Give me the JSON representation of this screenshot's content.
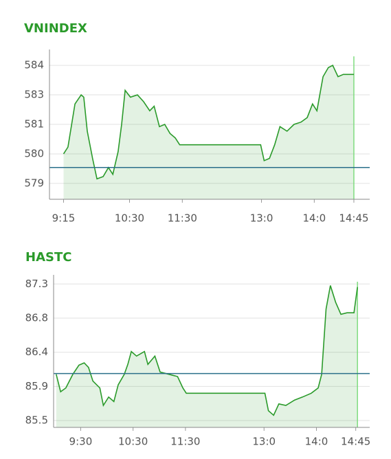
{
  "chart_data": [
    {
      "type": "line",
      "title": "VNINDEX",
      "color": "#2a9a2a",
      "grid": true,
      "x": [
        "9:15",
        "9:20",
        "9:28",
        "9:35",
        "9:38",
        "9:42",
        "9:48",
        "9:53",
        "10:00",
        "10:06",
        "10:11",
        "10:17",
        "10:21",
        "10:25",
        "10:31",
        "10:39",
        "10:46",
        "10:53",
        "10:58",
        "11:04",
        "11:10",
        "11:16",
        "11:22",
        "11:27",
        "12:59",
        "13:03",
        "13:09",
        "13:15",
        "13:21",
        "13:29",
        "13:37",
        "13:45",
        "13:52",
        "13:58",
        "14:03",
        "14:10",
        "14:16",
        "14:21",
        "14:27",
        "14:33",
        "14:45"
      ],
      "values": [
        580.1,
        580.4,
        582.3,
        582.7,
        582.6,
        581.1,
        579.9,
        579.0,
        579.1,
        579.5,
        579.2,
        580.2,
        581.4,
        582.9,
        582.6,
        582.7,
        582.4,
        582.0,
        582.2,
        581.3,
        581.4,
        581.0,
        580.8,
        580.5,
        580.5,
        579.8,
        579.9,
        580.5,
        581.3,
        581.1,
        581.4,
        581.5,
        581.7,
        582.3,
        582.0,
        583.5,
        583.9,
        584.0,
        583.5,
        583.6,
        583.6
      ],
      "baseline": 579.5,
      "baseline_color": "#2a6f8a",
      "xlim": [
        "8:59",
        "15:03"
      ],
      "xticks": [
        "9:15",
        "10:30",
        "11:30",
        {
          "value": "13:00",
          "label": "13:0"
        },
        {
          "value": "14:00",
          "label": "14:0"
        },
        "14:45"
      ],
      "ylim": [
        578.1,
        584.7
      ],
      "yticks": [
        {
          "value": 584.0,
          "label": "584"
        },
        {
          "value": 582.7,
          "label": "583"
        },
        {
          "value": 581.4,
          "label": "581"
        },
        {
          "value": 580.1,
          "label": "580"
        },
        {
          "value": 578.8,
          "label": "579"
        }
      ]
    },
    {
      "type": "line",
      "title": "HASTC",
      "color": "#2a9a2a",
      "grid": true,
      "x": [
        "9:02",
        "9:07",
        "9:13",
        "9:21",
        "9:28",
        "9:34",
        "9:39",
        "9:44",
        "9:52",
        "9:56",
        "10:02",
        "10:08",
        "10:13",
        "10:20",
        "10:24",
        "10:28",
        "10:34",
        "10:43",
        "10:47",
        "10:55",
        "11:01",
        "11:11",
        "11:21",
        "11:27",
        "11:31",
        "13:01",
        "13:05",
        "13:11",
        "13:17",
        "13:25",
        "13:35",
        "13:44",
        "13:54",
        "14:02",
        "14:06",
        "14:11",
        "14:16",
        "14:22",
        "14:28",
        "14:35",
        "14:43",
        "14:47"
      ],
      "values": [
        86.09,
        85.86,
        85.91,
        86.09,
        86.21,
        86.24,
        86.18,
        86.0,
        85.91,
        85.68,
        85.79,
        85.73,
        85.95,
        86.09,
        86.22,
        86.39,
        86.33,
        86.39,
        86.22,
        86.33,
        86.12,
        86.09,
        86.06,
        85.91,
        85.84,
        85.84,
        85.61,
        85.55,
        85.7,
        85.68,
        85.75,
        85.79,
        85.84,
        85.91,
        86.09,
        86.95,
        87.26,
        87.04,
        86.88,
        86.9,
        86.9,
        87.24
      ],
      "baseline": 86.1,
      "baseline_color": "#2a6f8a",
      "xlim": [
        "8:59",
        "15:01"
      ],
      "xticks": [
        "9:30",
        "10:30",
        "11:30",
        {
          "value": "13:00",
          "label": "13:0"
        },
        {
          "value": "14:00",
          "label": "14:0"
        },
        "14:45"
      ],
      "ylim": [
        85.39,
        87.4
      ],
      "yticks": [
        {
          "value": 87.28,
          "label": "87.3"
        },
        {
          "value": 86.83,
          "label": "86.8"
        },
        {
          "value": 86.38,
          "label": "86.4"
        },
        {
          "value": 85.93,
          "label": "85.9"
        },
        {
          "value": 85.48,
          "label": "85.5"
        }
      ]
    }
  ]
}
